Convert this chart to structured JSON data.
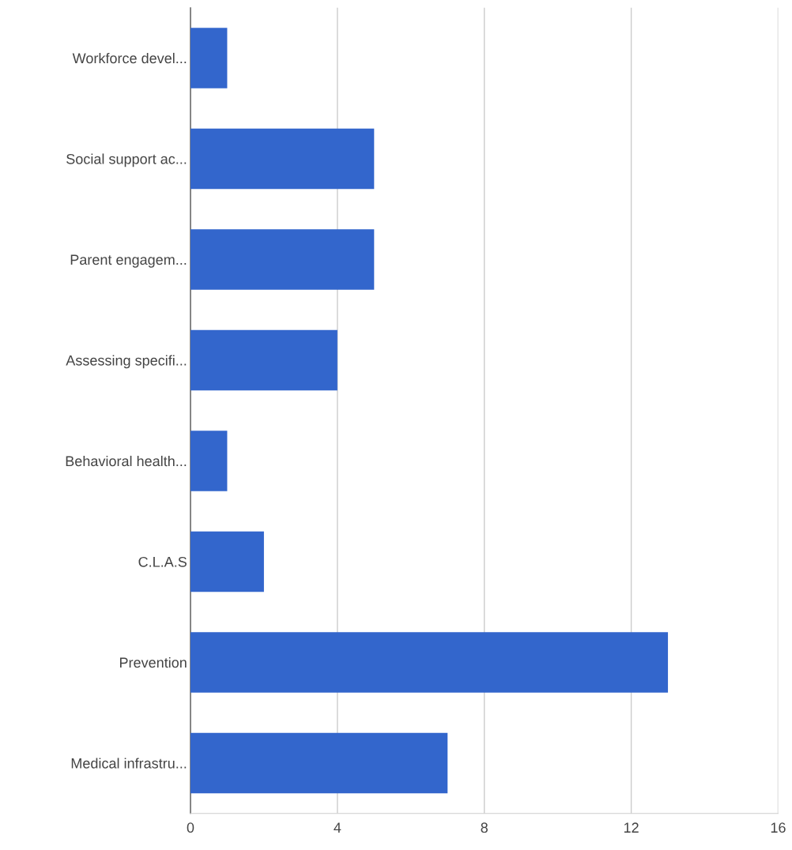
{
  "chart_data": {
    "type": "bar",
    "orientation": "horizontal",
    "categories": [
      "Workforce devel...",
      "Social support ac...",
      "Parent engagem...",
      "Assessing specifi...",
      "Behavioral health...",
      "C.L.A.S",
      "Prevention",
      "Medical infrastru..."
    ],
    "values": [
      1,
      5,
      5,
      4,
      1,
      2,
      13,
      7
    ],
    "color": "#3366cc",
    "xlim": [
      0,
      16
    ],
    "xticks": [
      0,
      4,
      8,
      12,
      16
    ],
    "grid": "x",
    "legend": false
  }
}
